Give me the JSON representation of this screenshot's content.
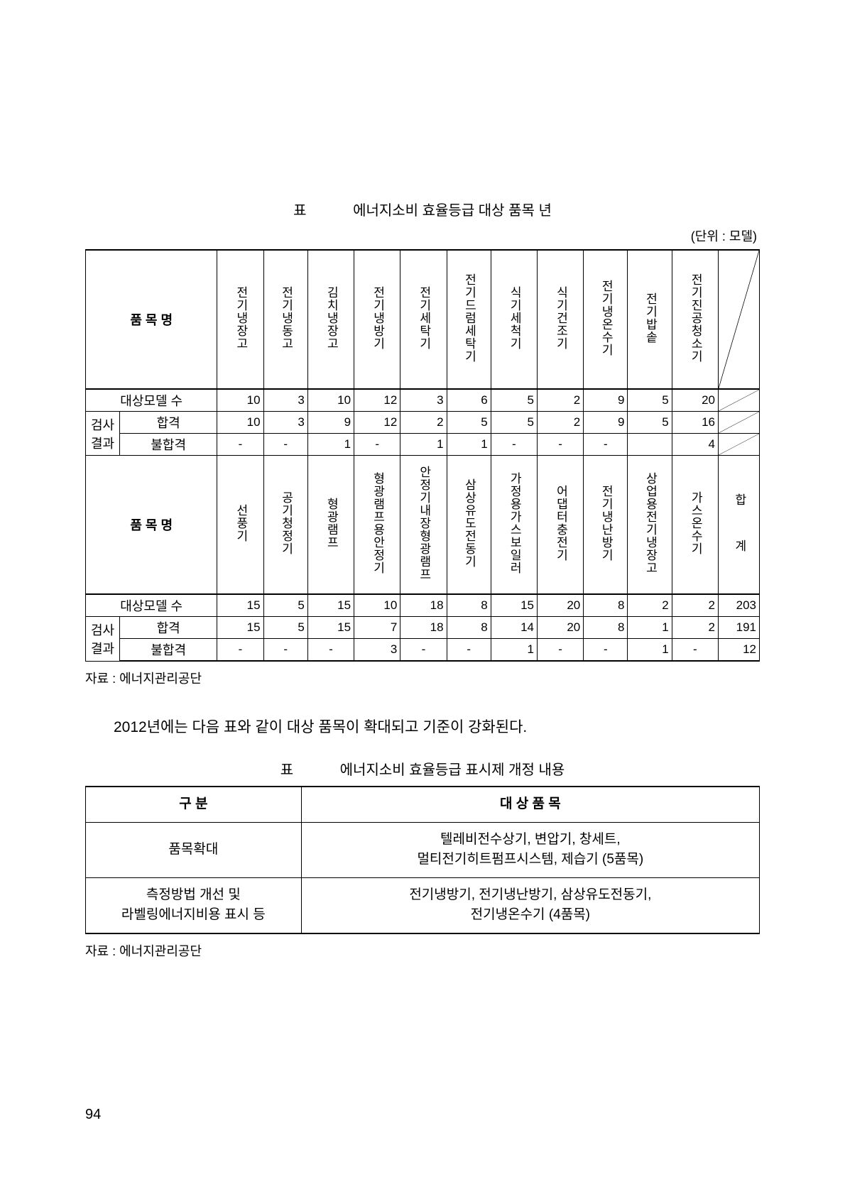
{
  "captions": {
    "t1_label": "표",
    "t1_title": "에너지소비 효율등급 대상 품목      년",
    "unit": "(단위 : 모델)",
    "source": "자료 : 에너지관리공단",
    "t2_label": "표",
    "t2_title": "에너지소비 효율등급 표시제 개정 내용",
    "source2": "자료 : 에너지관리공단"
  },
  "bodyText": "2012년에는 다음 표와 같이 대상 품목이 확대되고 기준이 강화된다.",
  "t1": {
    "headLabel": "품  목  명",
    "rowLabels": {
      "targetModel": "대상모델 수",
      "inspect": "검사",
      "result": "결과",
      "pass": "합격",
      "fail": "불합격"
    },
    "cols1": [
      "전기냉장고",
      "전기냉동고",
      "김치냉장고",
      "전기냉방기",
      "전기세탁기",
      "전기드럼세탁기",
      "식기세척기",
      "식기건조기",
      "전기냉온수기",
      "전기밥솥",
      "전기진공청소기"
    ],
    "r1_target": [
      "10",
      "3",
      "10",
      "12",
      "3",
      "6",
      "5",
      "2",
      "9",
      "5",
      "20"
    ],
    "r1_pass": [
      "10",
      "3",
      "9",
      "12",
      "2",
      "5",
      "5",
      "2",
      "9",
      "5",
      "16"
    ],
    "r1_fail": [
      "-",
      "-",
      "1",
      "-",
      "1",
      "1",
      "-",
      "-",
      "-",
      "",
      "4"
    ],
    "cols2": [
      "선풍기",
      "공기청정기",
      "형광램프",
      "형광램프용안정기",
      "안정기내장형광램프",
      "삼상유도전동기",
      "가정용가스보일러",
      "어댑터충전기",
      "전기냉난방기",
      "상업용전기냉장고",
      "가스온수기"
    ],
    "hap": "합",
    "gye": "계",
    "r2_target": [
      "15",
      "5",
      "15",
      "10",
      "18",
      "8",
      "15",
      "20",
      "8",
      "2",
      "2",
      "203"
    ],
    "r2_pass": [
      "15",
      "5",
      "15",
      "7",
      "18",
      "8",
      "14",
      "20",
      "8",
      "1",
      "2",
      "191"
    ],
    "r2_fail": [
      "-",
      "-",
      "-",
      "3",
      "-",
      "-",
      "1",
      "-",
      "-",
      "1",
      "-",
      "12"
    ]
  },
  "t2": {
    "head": [
      "구  분",
      "대 상 품 목"
    ],
    "rows": [
      [
        "품목확대",
        "텔레비전수상기, 변압기, 창세트,\n멀티전기히트펌프시스템, 제습기 (5품목)"
      ],
      [
        "측정방법 개선 및\n라벨링에너지비용 표시 등",
        "전기냉방기, 전기냉난방기, 삼상유도전동기,\n전기냉온수기 (4품목)"
      ]
    ]
  },
  "pageNum": "94"
}
